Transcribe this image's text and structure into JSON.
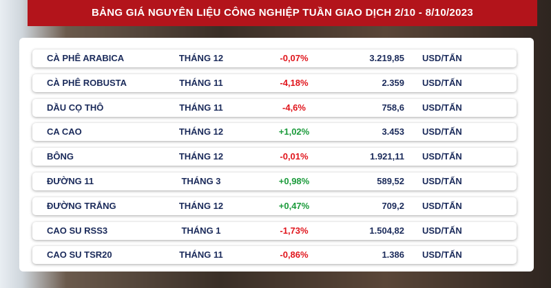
{
  "header": {
    "title": "BẢNG GIÁ NGUYÊN LIỆU CÔNG NGHIỆP TUẦN GIAO DỊCH 2/10 - 8/10/2023"
  },
  "table": {
    "rows": [
      [
        "CÀ PHÊ ARABICA",
        "THÁNG 12",
        "-0,07%",
        "3.219,85",
        "USD/TẤN"
      ],
      [
        "CÀ PHÊ ROBUSTA",
        "THÁNG 11",
        "-4,18%",
        "2.359",
        "USD/TẤN"
      ],
      [
        "DẦU CỌ THÔ",
        "THÁNG 11",
        "-4,6%",
        "758,6",
        "USD/TẤN"
      ],
      [
        "CA CAO",
        "THÁNG 12",
        "+1,02%",
        "3.453",
        "USD/TẤN"
      ],
      [
        "BÔNG",
        "THÁNG 12",
        "-0,01%",
        "1.921,11",
        "USD/TẤN"
      ],
      [
        "ĐƯỜNG 11",
        "THÁNG 3",
        "+0,98%",
        "589,52",
        "USD/TẤN"
      ],
      [
        "ĐƯỜNG TRẮNG",
        "THÁNG 12",
        "+0,47%",
        "709,2",
        "USD/TẤN"
      ],
      [
        "CAO SU RSS3",
        "THÁNG 1",
        "-1,73%",
        "1.504,82",
        "USD/TẤN"
      ],
      [
        "CAO SU TSR20",
        "THÁNG 11",
        "-0,86%",
        "1.386",
        "USD/TẤN"
      ]
    ]
  }
}
